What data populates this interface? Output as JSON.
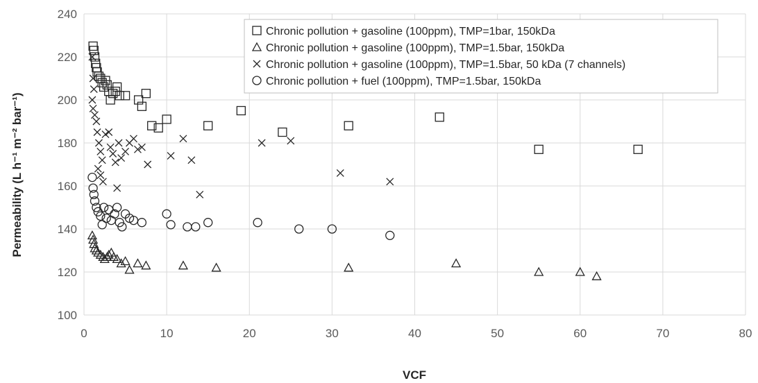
{
  "chart_data": {
    "type": "scatter",
    "title": "",
    "xlabel": "VCF",
    "ylabel": "Permeability (L h⁻¹ m⁻² bar⁻¹)",
    "xlim": [
      0,
      80
    ],
    "ylim": [
      100,
      240
    ],
    "x_ticks": [
      0,
      10,
      20,
      30,
      40,
      50,
      60,
      70,
      80
    ],
    "y_ticks": [
      100,
      120,
      140,
      160,
      180,
      200,
      220,
      240
    ],
    "grid": true,
    "legend_position": "top-right",
    "series": [
      {
        "name": "Chronic pollution + gasoline (100ppm), TMP=1bar,  150kDa",
        "marker": "square",
        "points": [
          [
            1.1,
            225
          ],
          [
            1.2,
            223
          ],
          [
            1.3,
            220
          ],
          [
            1.4,
            217
          ],
          [
            1.5,
            215
          ],
          [
            1.6,
            213
          ],
          [
            1.8,
            211
          ],
          [
            2.0,
            210
          ],
          [
            2.2,
            208
          ],
          [
            2.4,
            206
          ],
          [
            2.6,
            209
          ],
          [
            2.8,
            207
          ],
          [
            3.0,
            204
          ],
          [
            3.2,
            200
          ],
          [
            3.5,
            203
          ],
          [
            3.8,
            204
          ],
          [
            4.0,
            206
          ],
          [
            4.3,
            202
          ],
          [
            5.0,
            202
          ],
          [
            6.6,
            200
          ],
          [
            7.0,
            197
          ],
          [
            7.5,
            203
          ],
          [
            8.2,
            188
          ],
          [
            9.0,
            187
          ],
          [
            10.0,
            191
          ],
          [
            15.0,
            188
          ],
          [
            19.0,
            195
          ],
          [
            24.0,
            185
          ],
          [
            32.0,
            188
          ],
          [
            43.0,
            192
          ],
          [
            55.0,
            177
          ],
          [
            67.0,
            177
          ]
        ]
      },
      {
        "name": "Chronic pollution + gasoline (100ppm), TMP=1.5bar, 150kDa",
        "marker": "triangle",
        "points": [
          [
            1.0,
            137
          ],
          [
            1.1,
            135
          ],
          [
            1.2,
            133
          ],
          [
            1.3,
            131
          ],
          [
            1.5,
            130
          ],
          [
            1.7,
            129
          ],
          [
            2.0,
            128
          ],
          [
            2.3,
            127
          ],
          [
            2.5,
            126
          ],
          [
            2.8,
            127
          ],
          [
            3.0,
            128
          ],
          [
            3.3,
            129
          ],
          [
            3.6,
            127
          ],
          [
            4.0,
            126
          ],
          [
            4.5,
            124
          ],
          [
            5.0,
            125
          ],
          [
            5.5,
            121
          ],
          [
            6.5,
            124
          ],
          [
            7.5,
            123
          ],
          [
            12.0,
            123
          ],
          [
            16.0,
            122
          ],
          [
            32.0,
            122
          ],
          [
            45.0,
            124
          ],
          [
            55.0,
            120
          ],
          [
            60.0,
            120
          ],
          [
            62.0,
            118
          ]
        ]
      },
      {
        "name": "Chronic pollution + gasoline (100ppm), TMP=1.5bar, 50 kDa (7 channels)",
        "marker": "cross",
        "points": [
          [
            1.0,
            220
          ],
          [
            1.1,
            210
          ],
          [
            1.2,
            205
          ],
          [
            1.0,
            200
          ],
          [
            1.1,
            196
          ],
          [
            1.3,
            193
          ],
          [
            1.5,
            190
          ],
          [
            1.6,
            185
          ],
          [
            1.8,
            180
          ],
          [
            2.0,
            176
          ],
          [
            2.2,
            172
          ],
          [
            1.7,
            168
          ],
          [
            2.0,
            165
          ],
          [
            2.3,
            162
          ],
          [
            2.6,
            184
          ],
          [
            3.0,
            185
          ],
          [
            3.2,
            178
          ],
          [
            3.5,
            175
          ],
          [
            3.8,
            171
          ],
          [
            4.0,
            159
          ],
          [
            4.2,
            180
          ],
          [
            4.5,
            173
          ],
          [
            5.0,
            176
          ],
          [
            5.5,
            180
          ],
          [
            6.0,
            182
          ],
          [
            6.5,
            177
          ],
          [
            7.0,
            178
          ],
          [
            7.7,
            170
          ],
          [
            10.5,
            174
          ],
          [
            12.0,
            182
          ],
          [
            13.0,
            172
          ],
          [
            14.0,
            156
          ],
          [
            21.5,
            180
          ],
          [
            25.0,
            181
          ],
          [
            31.0,
            166
          ],
          [
            37.0,
            162
          ]
        ]
      },
      {
        "name": "Chronic pollution + fuel (100ppm), TMP=1.5bar, 150kDa",
        "marker": "circle",
        "points": [
          [
            1.0,
            164
          ],
          [
            1.1,
            159
          ],
          [
            1.2,
            156
          ],
          [
            1.3,
            153
          ],
          [
            1.5,
            150
          ],
          [
            1.7,
            148
          ],
          [
            2.0,
            146
          ],
          [
            2.2,
            142
          ],
          [
            2.4,
            150
          ],
          [
            2.7,
            145
          ],
          [
            3.0,
            149
          ],
          [
            3.3,
            144
          ],
          [
            3.7,
            147
          ],
          [
            4.0,
            150
          ],
          [
            4.3,
            143
          ],
          [
            4.6,
            141
          ],
          [
            5.0,
            147
          ],
          [
            5.5,
            145
          ],
          [
            6.0,
            144
          ],
          [
            7.0,
            143
          ],
          [
            10.0,
            147
          ],
          [
            10.5,
            142
          ],
          [
            12.5,
            141
          ],
          [
            13.5,
            141
          ],
          [
            15.0,
            143
          ],
          [
            21.0,
            143
          ],
          [
            26.0,
            140
          ],
          [
            30.0,
            140
          ],
          [
            37.0,
            137
          ]
        ]
      }
    ]
  }
}
